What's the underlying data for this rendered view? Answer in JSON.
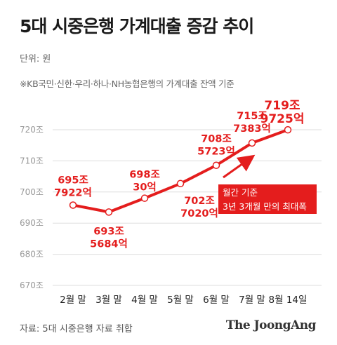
{
  "header": {
    "title": "5대 시중은행 가계대출 증감 추이",
    "unit": "단위: 원",
    "note": "※KB국민·신한·우리·하나·NH농협은행의 가계대출 잔액 기준"
  },
  "footer": {
    "source": "자료: 5대 시중은행 자료 취합",
    "brand": "The JoongAng"
  },
  "annotation": {
    "line1": "월간 기준",
    "line2": "3년 3개월 만의 최대폭"
  },
  "colors": {
    "line": "#e41d1d",
    "label": "#e41d1d",
    "grid": "#dddddd",
    "box": "#e41d1d"
  },
  "chart_data": {
    "type": "line",
    "title": "5대 시중은행 가계대출 증감 추이",
    "xlabel": "",
    "ylabel": "",
    "ylim": [
      670,
      725
    ],
    "yticks": [
      720,
      710,
      700,
      690,
      680,
      670
    ],
    "ytick_labels": [
      "720조",
      "710조",
      "700조",
      "690조",
      "680조",
      "670조"
    ],
    "grid": true,
    "categories": [
      "2월 말",
      "3월 말",
      "4월 말",
      "5월 말",
      "6월 말",
      "7월 말",
      "8월 14일"
    ],
    "values": [
      695.7922,
      693.5684,
      698.003,
      702.702,
      708.5723,
      715.7383,
      719.9725
    ],
    "labels": [
      [
        "695조",
        "7922억"
      ],
      [
        "693조",
        "5684억"
      ],
      [
        "698조",
        "30억"
      ],
      [
        "702조",
        "7020억"
      ],
      [
        "708조",
        "5723억"
      ],
      [
        "715조",
        "7383억"
      ],
      [
        "719조",
        "9725억"
      ]
    ]
  }
}
